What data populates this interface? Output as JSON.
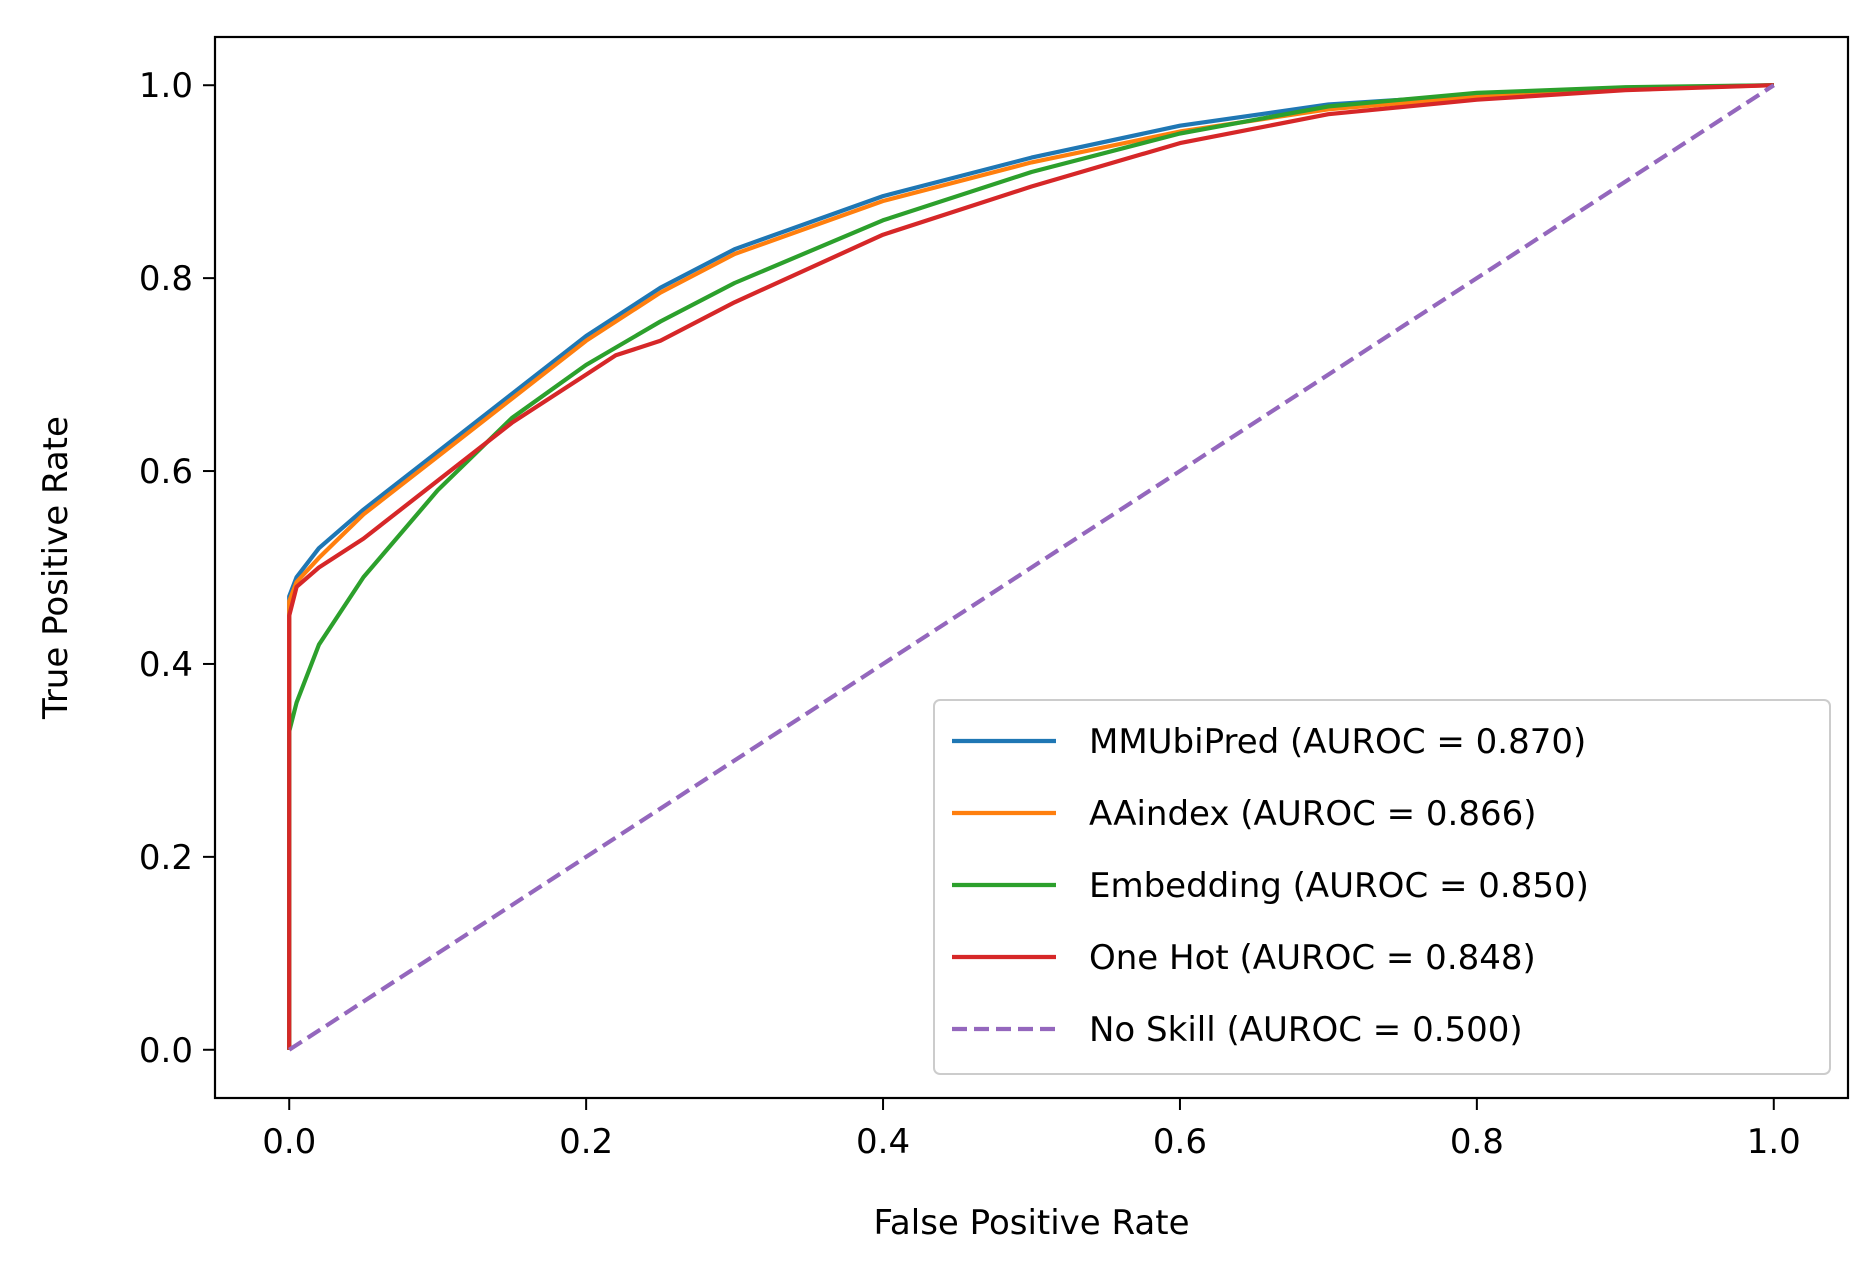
{
  "chart_data": {
    "type": "line",
    "title": "",
    "xlabel": "False Positive Rate",
    "ylabel": "True Positive Rate",
    "xlim": [
      -0.05,
      1.05
    ],
    "ylim": [
      -0.05,
      1.05
    ],
    "x_ticks": [
      0.0,
      0.2,
      0.4,
      0.6,
      0.8,
      1.0
    ],
    "y_ticks": [
      0.0,
      0.2,
      0.4,
      0.6,
      0.8,
      1.0
    ],
    "x_tick_labels": [
      "0.0",
      "0.2",
      "0.4",
      "0.6",
      "0.8",
      "1.0"
    ],
    "y_tick_labels": [
      "0.0",
      "0.2",
      "0.4",
      "0.6",
      "0.8",
      "1.0"
    ],
    "grid": false,
    "legend_position": "lower-right",
    "series": [
      {
        "name": "MMUbiPred (AUROC = 0.870)",
        "color": "#1f77b4",
        "dash": "solid",
        "x": [
          0,
          0,
          0.005,
          0.02,
          0.05,
          0.1,
          0.15,
          0.2,
          0.25,
          0.3,
          0.4,
          0.5,
          0.6,
          0.7,
          0.8,
          0.9,
          1.0
        ],
        "y": [
          0,
          0.47,
          0.49,
          0.52,
          0.56,
          0.62,
          0.68,
          0.74,
          0.79,
          0.83,
          0.885,
          0.925,
          0.958,
          0.98,
          0.99,
          0.997,
          1.0
        ]
      },
      {
        "name": "AAindex (AUROC = 0.866)",
        "color": "#ff7f0e",
        "dash": "solid",
        "x": [
          0,
          0,
          0.005,
          0.02,
          0.05,
          0.1,
          0.15,
          0.2,
          0.25,
          0.3,
          0.4,
          0.5,
          0.6,
          0.7,
          0.8,
          0.9,
          1.0
        ],
        "y": [
          0,
          0.465,
          0.485,
          0.51,
          0.555,
          0.615,
          0.675,
          0.735,
          0.785,
          0.825,
          0.88,
          0.92,
          0.952,
          0.975,
          0.988,
          0.996,
          1.0
        ]
      },
      {
        "name": "Embedding (AUROC = 0.850)",
        "color": "#2ca02c",
        "dash": "solid",
        "x": [
          0,
          0,
          0.005,
          0.02,
          0.05,
          0.1,
          0.15,
          0.2,
          0.25,
          0.3,
          0.4,
          0.5,
          0.6,
          0.7,
          0.8,
          0.9,
          1.0
        ],
        "y": [
          0,
          0.33,
          0.36,
          0.42,
          0.49,
          0.58,
          0.655,
          0.71,
          0.755,
          0.795,
          0.86,
          0.91,
          0.95,
          0.978,
          0.992,
          0.998,
          1.0
        ]
      },
      {
        "name": "One Hot (AUROC = 0.848)",
        "color": "#d62728",
        "dash": "solid",
        "x": [
          0,
          0,
          0.005,
          0.02,
          0.05,
          0.1,
          0.15,
          0.2,
          0.22,
          0.25,
          0.3,
          0.4,
          0.5,
          0.6,
          0.7,
          0.8,
          0.9,
          1.0
        ],
        "y": [
          0,
          0.45,
          0.48,
          0.5,
          0.53,
          0.59,
          0.65,
          0.7,
          0.72,
          0.735,
          0.775,
          0.845,
          0.895,
          0.94,
          0.97,
          0.985,
          0.995,
          1.0
        ]
      },
      {
        "name": "No Skill (AUROC = 0.500)",
        "color": "#9467bd",
        "dash": "dashed",
        "x": [
          0,
          1
        ],
        "y": [
          0,
          1
        ]
      }
    ]
  }
}
